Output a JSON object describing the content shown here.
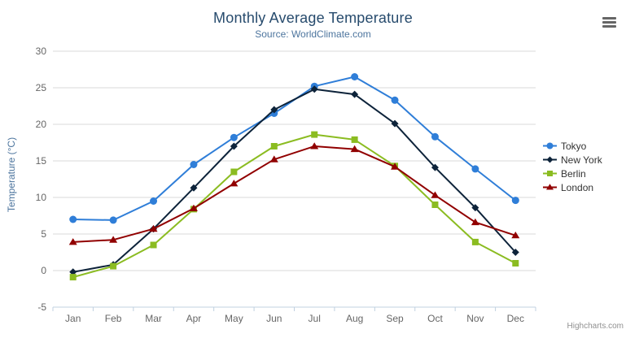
{
  "chart_data": {
    "type": "line",
    "title": "Monthly Average Temperature",
    "subtitle": "Source: WorldClimate.com",
    "xlabel": "",
    "ylabel": "Temperature (°C)",
    "ylim": [
      -5,
      30
    ],
    "y_ticks": [
      -5,
      0,
      5,
      10,
      15,
      20,
      25,
      30
    ],
    "grid": true,
    "legend_position": "right",
    "categories": [
      "Jan",
      "Feb",
      "Mar",
      "Apr",
      "May",
      "Jun",
      "Jul",
      "Aug",
      "Sep",
      "Oct",
      "Nov",
      "Dec"
    ],
    "series": [
      {
        "name": "Tokyo",
        "color": "#2f7ed8",
        "marker": "circle",
        "values": [
          7.0,
          6.9,
          9.5,
          14.5,
          18.2,
          21.5,
          25.2,
          26.5,
          23.3,
          18.3,
          13.9,
          9.6
        ]
      },
      {
        "name": "New York",
        "color": "#0d233a",
        "marker": "diamond",
        "values": [
          -0.2,
          0.8,
          5.7,
          11.3,
          17.0,
          22.0,
          24.8,
          24.1,
          20.1,
          14.1,
          8.6,
          2.5
        ]
      },
      {
        "name": "Berlin",
        "color": "#8bbc21",
        "marker": "square",
        "values": [
          -0.9,
          0.6,
          3.5,
          8.4,
          13.5,
          17.0,
          18.6,
          17.9,
          14.3,
          9.0,
          3.9,
          1.0
        ]
      },
      {
        "name": "London",
        "color": "#910000",
        "marker": "triangle",
        "values": [
          3.9,
          4.2,
          5.7,
          8.5,
          11.9,
          15.2,
          17.0,
          16.6,
          14.2,
          10.3,
          6.6,
          4.8
        ]
      }
    ]
  },
  "credits": {
    "label": "Highcharts.com"
  },
  "icons": {
    "context_menu": "hamburger-menu-icon"
  },
  "styles": {
    "title_color": "#274b6d",
    "subtitle_color": "#4d759e",
    "axis_label_color": "#666666",
    "grid_color": "#d8d8d8",
    "axis_line_color": "#c0d0e0",
    "legend_text_color": "#333333"
  }
}
